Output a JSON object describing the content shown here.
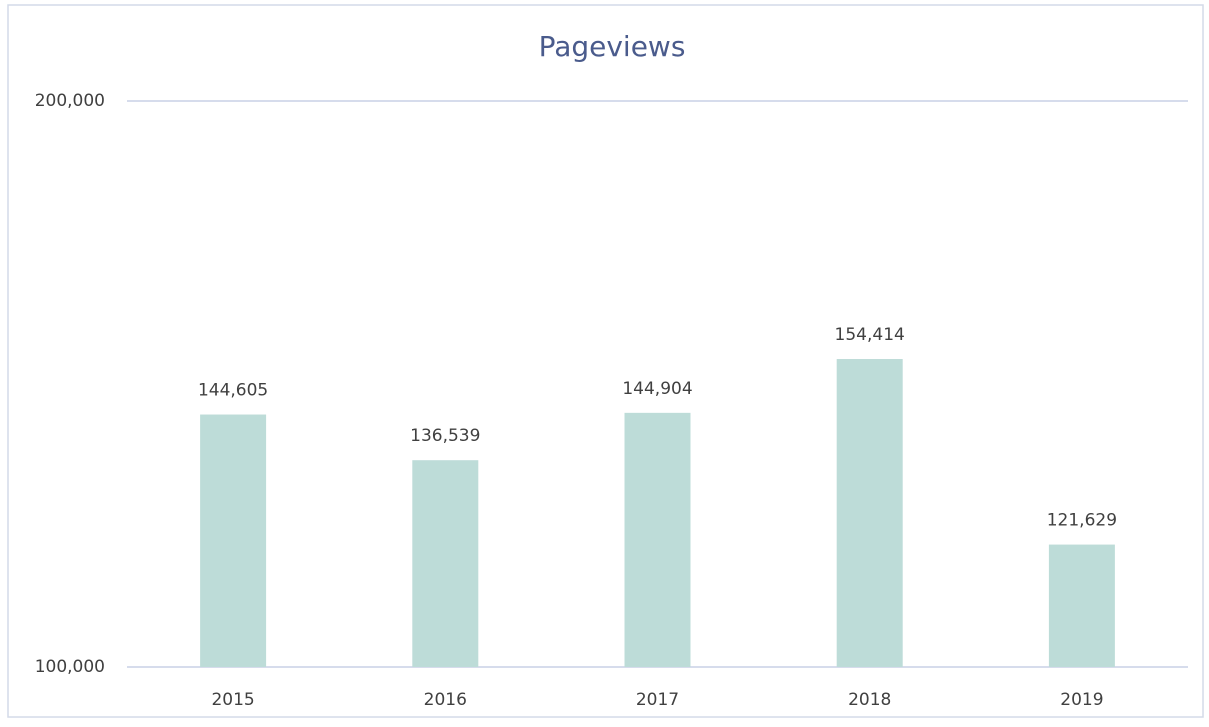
{
  "chart_data": {
    "type": "bar",
    "title": "Pageviews",
    "categories": [
      "2015",
      "2016",
      "2017",
      "2018",
      "2019"
    ],
    "values": [
      144605,
      136539,
      144904,
      154414,
      121629
    ],
    "value_labels": [
      "144,605",
      "136,539",
      "144,904",
      "154,414",
      "121,629"
    ],
    "color": "#bddcd8",
    "ylim": [
      100000,
      200000
    ],
    "yticks": [
      {
        "value": 100000,
        "label": "100,000"
      },
      {
        "value": 200000,
        "label": "200,000"
      }
    ],
    "grid": true
  }
}
